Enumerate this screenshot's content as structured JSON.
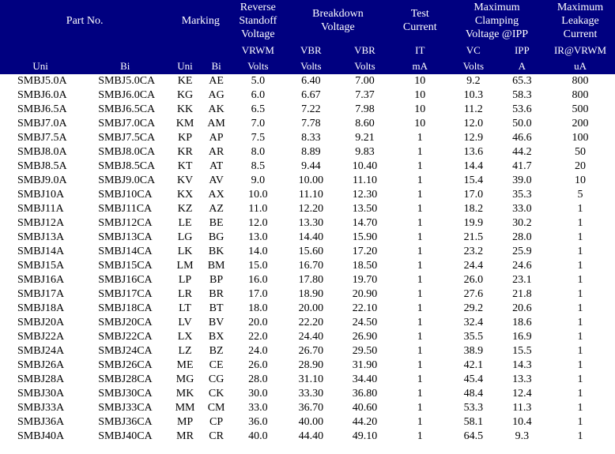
{
  "header": {
    "part_no": "Part No.",
    "marking": "Marking",
    "reverse_standoff": "Reverse\nStandoff\nVoltage",
    "breakdown": "Breakdown\nVoltage",
    "test_current": "Test\nCurrent",
    "max_clamp": "Maximum\nClamping\nVoltage @IPP",
    "max_leak": "Maximum\nLeakage\nCurrent",
    "uni": "Uni",
    "bi": "Bi",
    "muni": "Uni",
    "mbi": "Bi",
    "vrwm_sym": "VRWM",
    "vrwm_unit": "Volts",
    "vbr_sym": "VBR",
    "vbr_unit": "Volts",
    "it_sym": "IT",
    "it_unit": "mA",
    "vc_sym": "VC",
    "vc_unit": "Volts",
    "ipp_sym": "IPP",
    "ipp_unit": "A",
    "ir_sym": "IR@VRWM",
    "ir_unit": "uA"
  },
  "rows": [
    {
      "uni": "SMBJ5.0A",
      "bi": "SMBJ5.0CA",
      "muni": "KE",
      "mbi": "AE",
      "vrwm": "5.0",
      "vbr_min": "6.40",
      "vbr_max": "7.00",
      "it": "10",
      "vc": "9.2",
      "ipp": "65.3",
      "ir": "800"
    },
    {
      "uni": "SMBJ6.0A",
      "bi": "SMBJ6.0CA",
      "muni": "KG",
      "mbi": "AG",
      "vrwm": "6.0",
      "vbr_min": "6.67",
      "vbr_max": "7.37",
      "it": "10",
      "vc": "10.3",
      "ipp": "58.3",
      "ir": "800"
    },
    {
      "uni": "SMBJ6.5A",
      "bi": "SMBJ6.5CA",
      "muni": "KK",
      "mbi": "AK",
      "vrwm": "6.5",
      "vbr_min": "7.22",
      "vbr_max": "7.98",
      "it": "10",
      "vc": "11.2",
      "ipp": "53.6",
      "ir": "500"
    },
    {
      "uni": "SMBJ7.0A",
      "bi": "SMBJ7.0CA",
      "muni": "KM",
      "mbi": "AM",
      "vrwm": "7.0",
      "vbr_min": "7.78",
      "vbr_max": "8.60",
      "it": "10",
      "vc": "12.0",
      "ipp": "50.0",
      "ir": "200"
    },
    {
      "uni": "SMBJ7.5A",
      "bi": "SMBJ7.5CA",
      "muni": "KP",
      "mbi": "AP",
      "vrwm": "7.5",
      "vbr_min": "8.33",
      "vbr_max": "9.21",
      "it": "1",
      "vc": "12.9",
      "ipp": "46.6",
      "ir": "100"
    },
    {
      "uni": "SMBJ8.0A",
      "bi": "SMBJ8.0CA",
      "muni": "KR",
      "mbi": "AR",
      "vrwm": "8.0",
      "vbr_min": "8.89",
      "vbr_max": "9.83",
      "it": "1",
      "vc": "13.6",
      "ipp": "44.2",
      "ir": "50"
    },
    {
      "uni": "SMBJ8.5A",
      "bi": "SMBJ8.5CA",
      "muni": "KT",
      "mbi": "AT",
      "vrwm": "8.5",
      "vbr_min": "9.44",
      "vbr_max": "10.40",
      "it": "1",
      "vc": "14.4",
      "ipp": "41.7",
      "ir": "20"
    },
    {
      "uni": "SMBJ9.0A",
      "bi": "SMBJ9.0CA",
      "muni": "KV",
      "mbi": "AV",
      "vrwm": "9.0",
      "vbr_min": "10.00",
      "vbr_max": "11.10",
      "it": "1",
      "vc": "15.4",
      "ipp": "39.0",
      "ir": "10"
    },
    {
      "uni": "SMBJ10A",
      "bi": "SMBJ10CA",
      "muni": "KX",
      "mbi": "AX",
      "vrwm": "10.0",
      "vbr_min": "11.10",
      "vbr_max": "12.30",
      "it": "1",
      "vc": "17.0",
      "ipp": "35.3",
      "ir": "5"
    },
    {
      "uni": "SMBJ11A",
      "bi": "SMBJ11CA",
      "muni": "KZ",
      "mbi": "AZ",
      "vrwm": "11.0",
      "vbr_min": "12.20",
      "vbr_max": "13.50",
      "it": "1",
      "vc": "18.2",
      "ipp": "33.0",
      "ir": "1"
    },
    {
      "uni": "SMBJ12A",
      "bi": "SMBJ12CA",
      "muni": "LE",
      "mbi": "BE",
      "vrwm": "12.0",
      "vbr_min": "13.30",
      "vbr_max": "14.70",
      "it": "1",
      "vc": "19.9",
      "ipp": "30.2",
      "ir": "1"
    },
    {
      "uni": "SMBJ13A",
      "bi": "SMBJ13CA",
      "muni": "LG",
      "mbi": "BG",
      "vrwm": "13.0",
      "vbr_min": "14.40",
      "vbr_max": "15.90",
      "it": "1",
      "vc": "21.5",
      "ipp": "28.0",
      "ir": "1"
    },
    {
      "uni": "SMBJ14A",
      "bi": "SMBJ14CA",
      "muni": "LK",
      "mbi": "BK",
      "vrwm": "14.0",
      "vbr_min": "15.60",
      "vbr_max": "17.20",
      "it": "1",
      "vc": "23.2",
      "ipp": "25.9",
      "ir": "1"
    },
    {
      "uni": "SMBJ15A",
      "bi": "SMBJ15CA",
      "muni": "LM",
      "mbi": "BM",
      "vrwm": "15.0",
      "vbr_min": "16.70",
      "vbr_max": "18.50",
      "it": "1",
      "vc": "24.4",
      "ipp": "24.6",
      "ir": "1"
    },
    {
      "uni": "SMBJ16A",
      "bi": "SMBJ16CA",
      "muni": "LP",
      "mbi": "BP",
      "vrwm": "16.0",
      "vbr_min": "17.80",
      "vbr_max": "19.70",
      "it": "1",
      "vc": "26.0",
      "ipp": "23.1",
      "ir": "1"
    },
    {
      "uni": "SMBJ17A",
      "bi": "SMBJ17CA",
      "muni": "LR",
      "mbi": "BR",
      "vrwm": "17.0",
      "vbr_min": "18.90",
      "vbr_max": "20.90",
      "it": "1",
      "vc": "27.6",
      "ipp": "21.8",
      "ir": "1"
    },
    {
      "uni": "SMBJ18A",
      "bi": "SMBJ18CA",
      "muni": "LT",
      "mbi": "BT",
      "vrwm": "18.0",
      "vbr_min": "20.00",
      "vbr_max": "22.10",
      "it": "1",
      "vc": "29.2",
      "ipp": "20.6",
      "ir": "1"
    },
    {
      "uni": "SMBJ20A",
      "bi": "SMBJ20CA",
      "muni": "LV",
      "mbi": "BV",
      "vrwm": "20.0",
      "vbr_min": "22.20",
      "vbr_max": "24.50",
      "it": "1",
      "vc": "32.4",
      "ipp": "18.6",
      "ir": "1"
    },
    {
      "uni": "SMBJ22A",
      "bi": "SMBJ22CA",
      "muni": "LX",
      "mbi": "BX",
      "vrwm": "22.0",
      "vbr_min": "24.40",
      "vbr_max": "26.90",
      "it": "1",
      "vc": "35.5",
      "ipp": "16.9",
      "ir": "1"
    },
    {
      "uni": "SMBJ24A",
      "bi": "SMBJ24CA",
      "muni": "LZ",
      "mbi": "BZ",
      "vrwm": "24.0",
      "vbr_min": "26.70",
      "vbr_max": "29.50",
      "it": "1",
      "vc": "38.9",
      "ipp": "15.5",
      "ir": "1"
    },
    {
      "uni": "SMBJ26A",
      "bi": "SMBJ26CA",
      "muni": "ME",
      "mbi": "CE",
      "vrwm": "26.0",
      "vbr_min": "28.90",
      "vbr_max": "31.90",
      "it": "1",
      "vc": "42.1",
      "ipp": "14.3",
      "ir": "1"
    },
    {
      "uni": "SMBJ28A",
      "bi": "SMBJ28CA",
      "muni": "MG",
      "mbi": "CG",
      "vrwm": "28.0",
      "vbr_min": "31.10",
      "vbr_max": "34.40",
      "it": "1",
      "vc": "45.4",
      "ipp": "13.3",
      "ir": "1"
    },
    {
      "uni": "SMBJ30A",
      "bi": "SMBJ30CA",
      "muni": "MK",
      "mbi": "CK",
      "vrwm": "30.0",
      "vbr_min": "33.30",
      "vbr_max": "36.80",
      "it": "1",
      "vc": "48.4",
      "ipp": "12.4",
      "ir": "1"
    },
    {
      "uni": "SMBJ33A",
      "bi": "SMBJ33CA",
      "muni": "MM",
      "mbi": "CM",
      "vrwm": "33.0",
      "vbr_min": "36.70",
      "vbr_max": "40.60",
      "it": "1",
      "vc": "53.3",
      "ipp": "11.3",
      "ir": "1"
    },
    {
      "uni": "SMBJ36A",
      "bi": "SMBJ36CA",
      "muni": "MP",
      "mbi": "CP",
      "vrwm": "36.0",
      "vbr_min": "40.00",
      "vbr_max": "44.20",
      "it": "1",
      "vc": "58.1",
      "ipp": "10.4",
      "ir": "1"
    },
    {
      "uni": "SMBJ40A",
      "bi": "SMBJ40CA",
      "muni": "MR",
      "mbi": "CR",
      "vrwm": "40.0",
      "vbr_min": "44.40",
      "vbr_max": "49.10",
      "it": "1",
      "vc": "64.5",
      "ipp": "9.3",
      "ir": "1"
    }
  ],
  "style": {
    "header_bg": "#000080",
    "header_text": "#ffffff",
    "body_text": "#000000",
    "font_family": "Times New Roman",
    "body_fontsize": 14,
    "header_fontsize": 14
  }
}
